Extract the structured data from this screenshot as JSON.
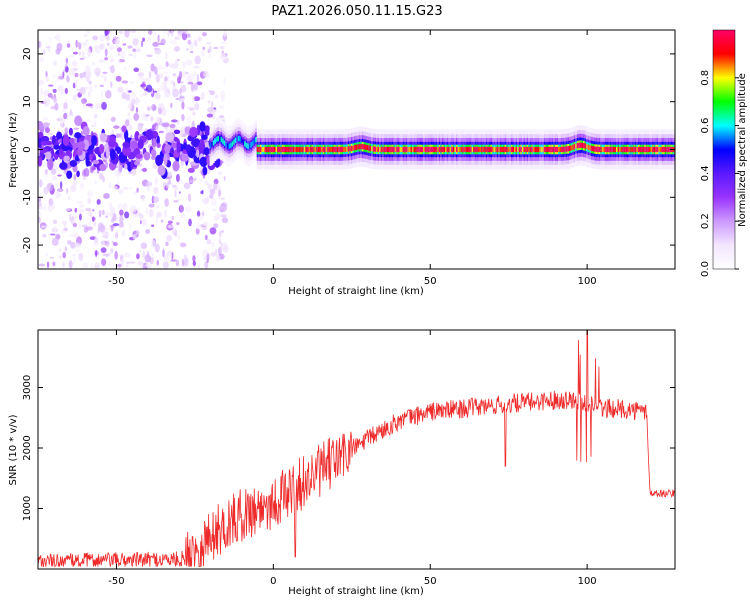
{
  "figure": {
    "title": "PAZ1.2026.050.11.15.G23"
  },
  "colors": {
    "series_line": "#ee2a2a",
    "axis": "#000000",
    "background": "#ffffff"
  },
  "chart_data": [
    {
      "type": "heatmap",
      "title": "PAZ1.2026.050.11.15.G23",
      "xlabel": "Height of straight line (km)",
      "ylabel": "Frequency (Hz)",
      "xlim": [
        -75,
        128
      ],
      "ylim": [
        -25,
        25
      ],
      "x_ticks": [
        -50,
        0,
        50,
        100
      ],
      "y_ticks": [
        -20,
        -10,
        0,
        10,
        20
      ],
      "colorbar": {
        "label": "Normalized spectral amplitude",
        "range": [
          0,
          1
        ],
        "ticks": [
          0.0,
          0.2,
          0.4,
          0.6,
          0.8
        ],
        "tick_labels": [
          "0.0",
          "0.2",
          "0.4",
          "0.6",
          "0.8"
        ],
        "colormap": [
          "#ffffff",
          "#f2e6ff",
          "#cc99ff",
          "#9933ff",
          "#5a1aff",
          "#0000ff",
          "#00ffff",
          "#00ff00",
          "#ffff00",
          "#ff0000",
          "#ff0066"
        ]
      },
      "ridge": {
        "center_frequency_hz": 0,
        "segments": [
          {
            "x_start": -75,
            "x_end": -20,
            "peak_amplitude": 0.45,
            "description": "noisy scattered energy"
          },
          {
            "x_start": -20,
            "x_end": -5,
            "peak_amplitude": 0.55
          },
          {
            "x_start": -5,
            "x_end": 128,
            "peak_amplitude": 0.95
          }
        ],
        "bumps": [
          {
            "x": 28,
            "freq": 0.6
          },
          {
            "x": 98,
            "freq": 0.9
          }
        ]
      }
    },
    {
      "type": "line",
      "xlabel": "Height of straight line (km)",
      "ylabel": "SNR (10 * v/v)",
      "xlim": [
        -75,
        128
      ],
      "ylim": [
        0,
        3950
      ],
      "x_ticks": [
        -50,
        0,
        50,
        100
      ],
      "y_ticks": [
        1000,
        2000,
        3000
      ],
      "series": [
        {
          "name": "SNR",
          "color": "#ee2a2a",
          "x": [
            -75,
            -60,
            -45,
            -30,
            -27,
            -20,
            -10,
            0,
            10,
            20,
            30,
            40,
            50,
            60,
            70,
            80,
            90,
            97,
            100,
            103,
            110,
            119,
            120,
            128
          ],
          "trend": [
            120,
            140,
            150,
            160,
            200,
            550,
            900,
            1100,
            1450,
            1800,
            2150,
            2450,
            2600,
            2650,
            2700,
            2750,
            2800,
            2800,
            2750,
            2650,
            2650,
            2600,
            1250,
            1250
          ]
        }
      ],
      "annotations": [
        {
          "x": 7,
          "value": 200,
          "label": "dropout"
        },
        {
          "x": 74,
          "value": 1700,
          "label": "dip"
        },
        {
          "x": 100,
          "value": 3950,
          "label": "spike"
        }
      ]
    }
  ]
}
